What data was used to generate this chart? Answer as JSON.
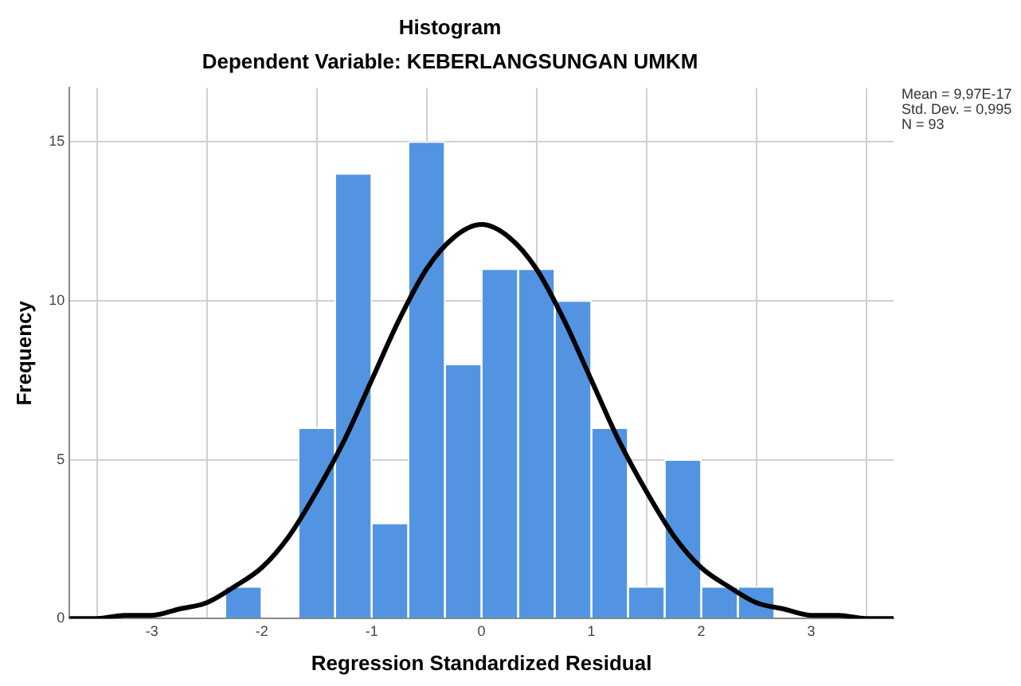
{
  "chart_data": {
    "type": "histogram",
    "title": "Histogram",
    "subtitle": "Dependent Variable: KEBERLANGSUNGAN UMKM",
    "xlabel": "Regression Standardized Residual",
    "ylabel": "Frequency",
    "bins": [
      -2.3333,
      -2,
      -1.6667,
      -1.3333,
      -1,
      -0.6667,
      -0.3333,
      0,
      0.3333,
      0.6667,
      1,
      1.3333,
      1.6667,
      2,
      2.3333,
      2.6667
    ],
    "values": [
      1,
      0,
      6,
      14,
      3,
      15,
      8,
      11,
      11,
      10,
      6,
      1,
      5,
      1,
      1
    ],
    "color": "#5294e2",
    "series": [
      {
        "type": "line",
        "color": "#000000",
        "x": [
          -3.75,
          -3.5,
          -3.25,
          -3,
          -2.75,
          -2.5,
          -2.25,
          -2,
          -1.75,
          -1.5,
          -1.25,
          -1,
          -0.75,
          -0.5,
          -0.25,
          0,
          0.25,
          0.5,
          0.75,
          1,
          1.25,
          1.5,
          1.75,
          2,
          2.25,
          2.5,
          2.75,
          3,
          3.25,
          3.5,
          3.75
        ],
        "values": [
          0,
          0,
          0.1,
          0.1,
          0.3,
          0.5,
          1,
          1.6,
          2.6,
          4,
          5.6,
          7.5,
          9.4,
          11,
          12,
          12.4,
          12,
          11,
          9.4,
          7.5,
          5.6,
          4,
          2.6,
          1.6,
          1,
          0.5,
          0.3,
          0.1,
          0.1,
          0,
          0
        ]
      }
    ],
    "xlim": [
      -3.75,
      3.75
    ],
    "xticks": [
      -3,
      -2,
      -1,
      0,
      1,
      2,
      3
    ],
    "ylim": [
      0,
      16.7
    ],
    "yticks": [
      0,
      5,
      10,
      15
    ],
    "grid": true,
    "legend": false,
    "marker": "none",
    "line_style": "solid",
    "annotations": [
      "Mean = 9,97E-17",
      "Std. Dev. = 0,995",
      "N = 93"
    ]
  }
}
